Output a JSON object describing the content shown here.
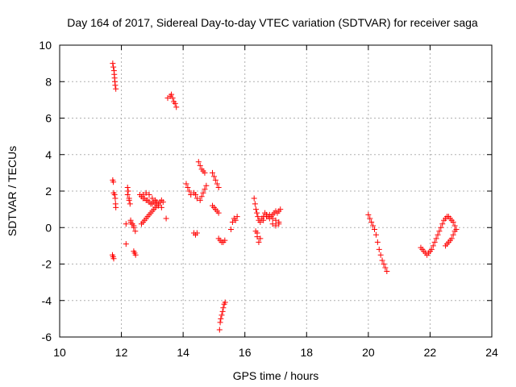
{
  "chart_data": {
    "type": "scatter",
    "title": "Day 164 of 2017, Sidereal Day-to-day VTEC variation (SDTVAR) for receiver saga",
    "xlabel": "GPS time / hours",
    "ylabel": "SDTVAR / TECUs",
    "xlim": [
      10,
      24
    ],
    "ylim": [
      -6,
      10
    ],
    "xticks": [
      10,
      12,
      14,
      16,
      18,
      20,
      22,
      24
    ],
    "yticks": [
      -6,
      -4,
      -2,
      0,
      2,
      4,
      6,
      8,
      10
    ],
    "grid": true,
    "marker": "+",
    "color": "#ff0000",
    "series": [
      {
        "name": "SDTVAR",
        "x": [
          11.72,
          11.74,
          11.76,
          11.77,
          11.78,
          11.79,
          11.8,
          11.82,
          11.72,
          11.74,
          11.75,
          11.78,
          11.8,
          11.81,
          11.82,
          11.71,
          11.73,
          11.75,
          12.15,
          12.2,
          12.22,
          12.25,
          12.28,
          12.3,
          12.35,
          12.4,
          12.45,
          12.2,
          12.25,
          12.3,
          12.35,
          12.4,
          12.4,
          12.43,
          12.46,
          12.15,
          12.6,
          12.65,
          12.7,
          12.75,
          12.8,
          12.85,
          12.9,
          12.95,
          13.0,
          13.05,
          13.1,
          13.15,
          13.2,
          13.25,
          13.3,
          13.35,
          12.65,
          12.7,
          12.75,
          12.8,
          12.85,
          12.9,
          12.95,
          13.0,
          13.05,
          13.1,
          13.15,
          12.7,
          12.8,
          12.9,
          13.0,
          13.1,
          13.2,
          13.3,
          13.45,
          13.5,
          13.58,
          13.62,
          13.66,
          13.7,
          13.74,
          13.78,
          14.1,
          14.15,
          14.2,
          14.25,
          14.35,
          14.4,
          14.45,
          14.35,
          14.4,
          14.45,
          14.5,
          14.55,
          14.6,
          14.65,
          14.7,
          14.55,
          14.6,
          14.65,
          14.7,
          14.75,
          14.95,
          15.0,
          15.05,
          15.1,
          15.15,
          14.95,
          15.0,
          15.05,
          15.1,
          15.15,
          15.15,
          15.2,
          15.25,
          15.3,
          15.35,
          15.18,
          15.2,
          15.22,
          15.25,
          15.28,
          15.3,
          15.33,
          15.36,
          15.55,
          15.6,
          15.65,
          15.7,
          15.75,
          16.3,
          16.33,
          16.36,
          16.39,
          16.42,
          16.45,
          16.35,
          16.4,
          16.45,
          16.5,
          16.55,
          16.6,
          16.65,
          16.7,
          16.75,
          16.8,
          16.85,
          16.9,
          16.95,
          17.0,
          17.05,
          17.1,
          17.15,
          16.4,
          16.5,
          16.6,
          16.7,
          16.8,
          16.9,
          17.0,
          17.1,
          16.9,
          17.0,
          17.1,
          20.0,
          20.05,
          20.1,
          20.15,
          20.2,
          20.25,
          20.3,
          20.35,
          20.4,
          20.45,
          20.5,
          20.55,
          20.6,
          21.7,
          21.75,
          21.8,
          21.85,
          21.9,
          21.95,
          22.0,
          22.05,
          22.1,
          22.15,
          22.2,
          22.25,
          22.3,
          22.35,
          22.4,
          22.45,
          22.5,
          22.55,
          22.6,
          22.65,
          22.7,
          22.75,
          22.8,
          22.85,
          22.8,
          22.75,
          22.7,
          22.65,
          22.6,
          22.55,
          22.5
        ],
        "y": [
          9.0,
          8.8,
          8.6,
          8.4,
          8.2,
          8.0,
          7.8,
          7.6,
          2.6,
          2.5,
          1.9,
          1.8,
          1.6,
          1.3,
          1.1,
          -1.5,
          -1.6,
          -1.7,
          -0.9,
          2.2,
          2.0,
          1.6,
          1.3,
          0.3,
          0.2,
          0.0,
          -0.2,
          1.8,
          1.5,
          0.4,
          0.2,
          0.1,
          -1.3,
          -1.4,
          -1.5,
          0.2,
          1.8,
          1.7,
          1.6,
          1.6,
          1.5,
          1.5,
          1.4,
          1.3,
          1.3,
          1.4,
          1.5,
          1.4,
          1.3,
          1.4,
          1.5,
          1.4,
          0.2,
          0.3,
          0.4,
          0.5,
          0.6,
          0.7,
          0.8,
          0.9,
          1.0,
          1.1,
          1.2,
          1.8,
          1.9,
          1.8,
          1.6,
          1.4,
          1.2,
          1.1,
          0.5,
          7.1,
          7.2,
          7.3,
          7.1,
          6.9,
          6.8,
          6.6,
          2.4,
          2.2,
          2.0,
          1.8,
          1.9,
          1.8,
          1.6,
          -0.3,
          -0.4,
          -0.3,
          3.6,
          3.4,
          3.2,
          3.1,
          3.0,
          1.5,
          1.7,
          1.9,
          2.1,
          2.3,
          3.0,
          2.8,
          2.6,
          2.4,
          2.2,
          1.2,
          1.1,
          1.0,
          0.9,
          0.8,
          -0.6,
          -0.7,
          -0.8,
          -0.8,
          -0.7,
          -5.6,
          -5.2,
          -5.0,
          -4.8,
          -4.6,
          -4.4,
          -4.2,
          -4.1,
          -0.1,
          0.3,
          0.5,
          0.4,
          0.6,
          1.6,
          1.3,
          1.0,
          0.8,
          0.6,
          0.4,
          -0.2,
          -0.5,
          -0.8,
          0.3,
          0.5,
          0.6,
          0.8,
          0.7,
          0.6,
          0.5,
          0.6,
          0.7,
          0.8,
          0.9,
          0.8,
          0.9,
          1.0,
          -0.3,
          -0.6,
          0.4,
          0.6,
          0.7,
          0.5,
          0.4,
          0.2,
          0.2,
          0.1,
          0.3,
          0.7,
          0.5,
          0.3,
          0.1,
          -0.1,
          -0.4,
          -0.8,
          -1.2,
          -1.5,
          -1.8,
          -2.0,
          -2.2,
          -2.4,
          -1.1,
          -1.2,
          -1.3,
          -1.4,
          -1.5,
          -1.4,
          -1.3,
          -1.2,
          -1.0,
          -0.8,
          -0.6,
          -0.4,
          -0.2,
          0.0,
          0.2,
          0.4,
          0.5,
          0.6,
          0.6,
          0.5,
          0.4,
          0.3,
          0.1,
          -0.1,
          -0.2,
          -0.4,
          -0.6,
          -0.7,
          -0.8,
          -0.9,
          -1.0
        ]
      }
    ]
  }
}
